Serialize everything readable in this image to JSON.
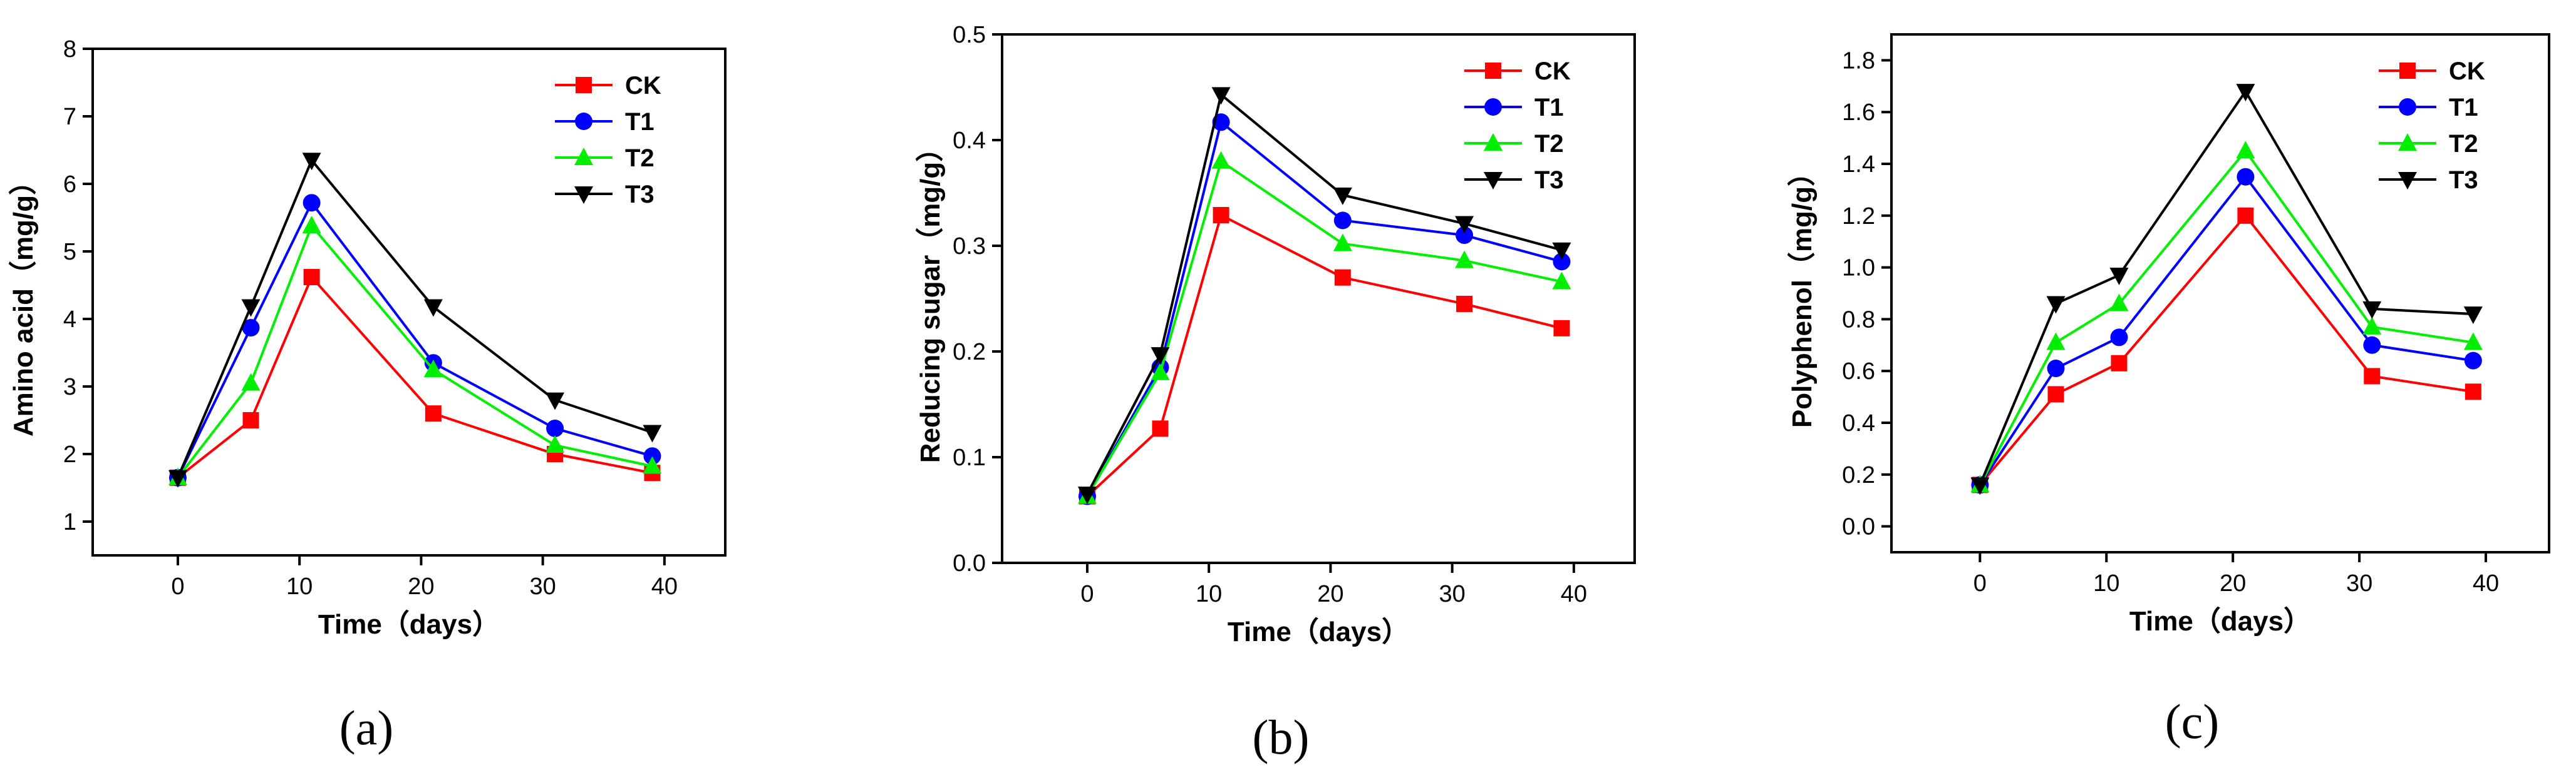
{
  "chart_data": [
    {
      "type": "line",
      "panel_label": "(a)",
      "xlabel": "Time（days）",
      "ylabel": "Amino acid（mg/g）",
      "x": [
        0,
        6,
        11,
        21,
        31,
        39
      ],
      "xlim": [
        -7,
        45
      ],
      "ylim": [
        0.5,
        8
      ],
      "xticks": [
        0,
        10,
        20,
        30,
        40
      ],
      "yticks": [
        1,
        2,
        3,
        4,
        5,
        6,
        7,
        8
      ],
      "ytick_labels": [
        "1",
        "2",
        "3",
        "4",
        "5",
        "6",
        "7",
        "8"
      ],
      "legend_position": "top-right",
      "series": [
        {
          "name": "CK",
          "values": [
            1.65,
            2.5,
            4.62,
            2.6,
            2.0,
            1.72
          ]
        },
        {
          "name": "T1",
          "values": [
            1.65,
            3.87,
            5.72,
            3.35,
            2.38,
            1.97
          ]
        },
        {
          "name": "T2",
          "values": [
            1.65,
            3.05,
            5.38,
            3.25,
            2.13,
            1.82
          ]
        },
        {
          "name": "T3",
          "values": [
            1.65,
            4.18,
            6.35,
            4.18,
            2.8,
            2.32
          ]
        }
      ]
    },
    {
      "type": "line",
      "panel_label": "(b)",
      "xlabel": "Time（days）",
      "ylabel": "Reducing sugar（mg/g）",
      "x": [
        0,
        6,
        11,
        21,
        31,
        39
      ],
      "xlim": [
        -7,
        45
      ],
      "ylim": [
        0,
        0.5
      ],
      "xticks": [
        0,
        10,
        20,
        30,
        40
      ],
      "yticks": [
        0,
        0.1,
        0.2,
        0.3,
        0.4,
        0.5
      ],
      "ytick_labels": [
        "0.0",
        "0.1",
        "0.2",
        "0.3",
        "0.4",
        "0.5"
      ],
      "legend_position": "top-right",
      "series": [
        {
          "name": "CK",
          "values": [
            0.063,
            0.127,
            0.329,
            0.27,
            0.245,
            0.222
          ]
        },
        {
          "name": "T1",
          "values": [
            0.063,
            0.185,
            0.417,
            0.324,
            0.31,
            0.285
          ]
        },
        {
          "name": "T2",
          "values": [
            0.063,
            0.18,
            0.38,
            0.302,
            0.286,
            0.266
          ]
        },
        {
          "name": "T3",
          "values": [
            0.065,
            0.197,
            0.443,
            0.348,
            0.321,
            0.296
          ]
        }
      ]
    },
    {
      "type": "line",
      "panel_label": "(c)",
      "xlabel": "Time（days）",
      "ylabel": "Polyphenol（mg/g）",
      "x": [
        0,
        6,
        11,
        21,
        31,
        39
      ],
      "xlim": [
        -7,
        45
      ],
      "ylim": [
        -0.1,
        1.9
      ],
      "xticks": [
        0,
        10,
        20,
        30,
        40
      ],
      "yticks": [
        0,
        0.2,
        0.4,
        0.6,
        0.8,
        1.0,
        1.2,
        1.4,
        1.6,
        1.8
      ],
      "ytick_labels": [
        "0.0",
        "0.2",
        "0.4",
        "0.6",
        "0.8",
        "1.0",
        "1.2",
        "1.4",
        "1.6",
        "1.8"
      ],
      "legend_position": "top-right",
      "series": [
        {
          "name": "CK",
          "values": [
            0.16,
            0.51,
            0.63,
            1.2,
            0.58,
            0.52
          ]
        },
        {
          "name": "T1",
          "values": [
            0.16,
            0.61,
            0.73,
            1.35,
            0.7,
            0.64
          ]
        },
        {
          "name": "T2",
          "values": [
            0.16,
            0.71,
            0.86,
            1.45,
            0.77,
            0.71
          ]
        },
        {
          "name": "T3",
          "values": [
            0.16,
            0.86,
            0.97,
            1.68,
            0.84,
            0.82
          ]
        }
      ]
    }
  ],
  "series_styles": [
    {
      "name": "CK",
      "color": "#ff0000",
      "marker": "square"
    },
    {
      "name": "T1",
      "color": "#0000ff",
      "marker": "circle"
    },
    {
      "name": "T2",
      "color": "#00ee00",
      "marker": "triangle-up"
    },
    {
      "name": "T3",
      "color": "#000000",
      "marker": "triangle-down"
    }
  ]
}
